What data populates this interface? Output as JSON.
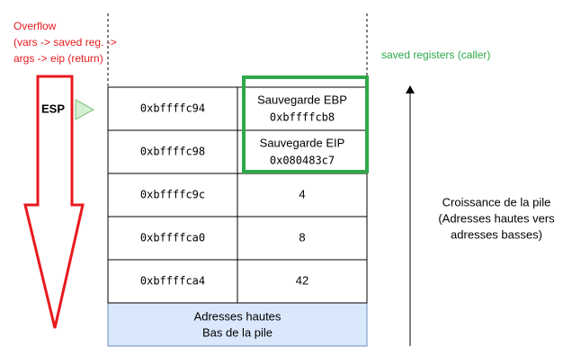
{
  "overflow_label": [
    "Overflow",
    "(vars -> saved reg. ->",
    "args ->  eip (return)"
  ],
  "esp_label": "ESP",
  "saved_registers_label": "saved registers (caller)",
  "rows": [
    {
      "address": "0xbffffc94",
      "lines": [
        "Sauvegarde EBP",
        "0xbffffcb8"
      ]
    },
    {
      "address": "0xbffffc98",
      "lines": [
        "Sauvegarde EIP",
        "0x080483c7"
      ]
    },
    {
      "address": "0xbffffc9c",
      "value": 4
    },
    {
      "address": "0xbffffca0",
      "value": 8
    },
    {
      "address": "0xbffffca4",
      "value": 42
    }
  ],
  "bottom": [
    "Adresses hautes",
    "Bas de la pile"
  ],
  "growth": [
    "Croissance de la pile",
    "(Adresses hautes vers",
    "adresses basses)"
  ]
}
